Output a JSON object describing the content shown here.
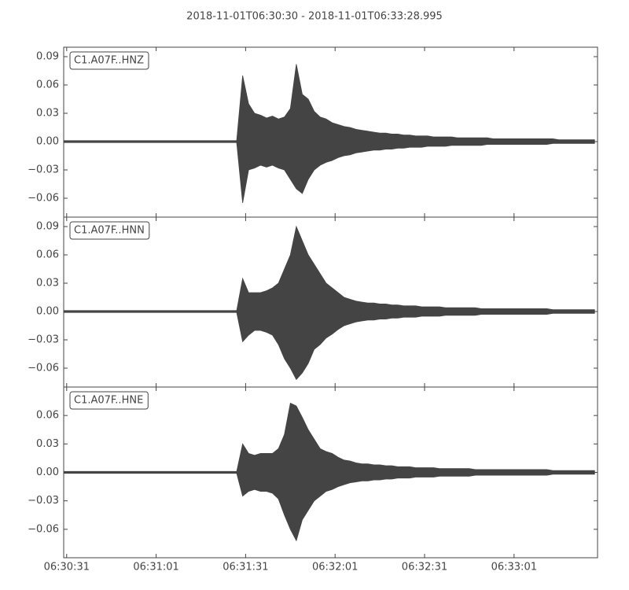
{
  "title": "2018-11-01T06:30:30  -  2018-11-01T06:33:28.995",
  "chart_data": [
    {
      "type": "waveform",
      "label": "C1.A07F..HNZ",
      "color": "#444444",
      "x": [
        0,
        2,
        4,
        6,
        8,
        10,
        12,
        14,
        16,
        18,
        20,
        22,
        24,
        26,
        28,
        30,
        32,
        34,
        36,
        38,
        40,
        42,
        44,
        46,
        48,
        50,
        52,
        54,
        56,
        58,
        60,
        62,
        64,
        66,
        68,
        70,
        72,
        74,
        76,
        78,
        80,
        82,
        84,
        86,
        88,
        90,
        92,
        94,
        96,
        98,
        100,
        102,
        104,
        106,
        108,
        110,
        112,
        114,
        116,
        118,
        120,
        122,
        124,
        126,
        128,
        130,
        132,
        134,
        136,
        138,
        140,
        142,
        144,
        146,
        148,
        150,
        152,
        154,
        156,
        158,
        160,
        162,
        164,
        166,
        168,
        170,
        172,
        174,
        176,
        178
      ],
      "max": [
        0.001,
        0.001,
        0.001,
        0.001,
        0.001,
        0.001,
        0.001,
        0.001,
        0.001,
        0.001,
        0.001,
        0.001,
        0.001,
        0.001,
        0.001,
        0.001,
        0.001,
        0.001,
        0.001,
        0.001,
        0.001,
        0.001,
        0.001,
        0.001,
        0.001,
        0.001,
        0.001,
        0.001,
        0.001,
        0.001,
        0.07,
        0.04,
        0.03,
        0.028,
        0.025,
        0.027,
        0.024,
        0.026,
        0.035,
        0.082,
        0.05,
        0.045,
        0.032,
        0.026,
        0.024,
        0.02,
        0.018,
        0.016,
        0.015,
        0.013,
        0.012,
        0.011,
        0.01,
        0.009,
        0.009,
        0.008,
        0.008,
        0.007,
        0.007,
        0.006,
        0.006,
        0.006,
        0.005,
        0.005,
        0.005,
        0.005,
        0.004,
        0.004,
        0.004,
        0.004,
        0.004,
        0.004,
        0.003,
        0.003,
        0.003,
        0.003,
        0.003,
        0.003,
        0.003,
        0.003,
        0.003,
        0.003,
        0.003,
        0.002,
        0.002,
        0.002,
        0.002,
        0.002,
        0.002,
        0.002
      ],
      "min": [
        -0.001,
        -0.001,
        -0.001,
        -0.001,
        -0.001,
        -0.001,
        -0.001,
        -0.001,
        -0.001,
        -0.001,
        -0.001,
        -0.001,
        -0.001,
        -0.001,
        -0.001,
        -0.001,
        -0.001,
        -0.001,
        -0.001,
        -0.001,
        -0.001,
        -0.001,
        -0.001,
        -0.001,
        -0.001,
        -0.001,
        -0.001,
        -0.001,
        -0.001,
        -0.001,
        -0.065,
        -0.03,
        -0.028,
        -0.025,
        -0.027,
        -0.025,
        -0.028,
        -0.03,
        -0.04,
        -0.05,
        -0.055,
        -0.04,
        -0.03,
        -0.025,
        -0.022,
        -0.02,
        -0.017,
        -0.015,
        -0.014,
        -0.012,
        -0.011,
        -0.01,
        -0.009,
        -0.009,
        -0.008,
        -0.008,
        -0.007,
        -0.007,
        -0.006,
        -0.006,
        -0.006,
        -0.005,
        -0.005,
        -0.005,
        -0.005,
        -0.004,
        -0.004,
        -0.004,
        -0.004,
        -0.004,
        -0.004,
        -0.003,
        -0.003,
        -0.003,
        -0.003,
        -0.003,
        -0.003,
        -0.003,
        -0.003,
        -0.003,
        -0.003,
        -0.003,
        -0.002,
        -0.002,
        -0.002,
        -0.002,
        -0.002,
        -0.002,
        -0.002,
        -0.002
      ],
      "xlim": [
        0,
        178.995
      ],
      "ylim": [
        -0.08,
        0.1
      ],
      "yticks": [
        {
          "value": -0.06,
          "label": "−0.06"
        },
        {
          "value": -0.03,
          "label": "−0.03"
        },
        {
          "value": 0,
          "label": "0.00"
        },
        {
          "value": 0.03,
          "label": "0.03"
        },
        {
          "value": 0.06,
          "label": "0.06"
        },
        {
          "value": 0.09,
          "label": "0.09"
        }
      ]
    },
    {
      "type": "waveform",
      "label": "C1.A07F..HNN",
      "color": "#444444",
      "x": [
        0,
        2,
        4,
        6,
        8,
        10,
        12,
        14,
        16,
        18,
        20,
        22,
        24,
        26,
        28,
        30,
        32,
        34,
        36,
        38,
        40,
        42,
        44,
        46,
        48,
        50,
        52,
        54,
        56,
        58,
        60,
        62,
        64,
        66,
        68,
        70,
        72,
        74,
        76,
        78,
        80,
        82,
        84,
        86,
        88,
        90,
        92,
        94,
        96,
        98,
        100,
        102,
        104,
        106,
        108,
        110,
        112,
        114,
        116,
        118,
        120,
        122,
        124,
        126,
        128,
        130,
        132,
        134,
        136,
        138,
        140,
        142,
        144,
        146,
        148,
        150,
        152,
        154,
        156,
        158,
        160,
        162,
        164,
        166,
        168,
        170,
        172,
        174,
        176,
        178
      ],
      "max": [
        0.001,
        0.001,
        0.001,
        0.001,
        0.001,
        0.001,
        0.001,
        0.001,
        0.001,
        0.001,
        0.001,
        0.001,
        0.001,
        0.001,
        0.001,
        0.001,
        0.001,
        0.001,
        0.001,
        0.001,
        0.001,
        0.001,
        0.001,
        0.001,
        0.001,
        0.001,
        0.001,
        0.001,
        0.001,
        0.001,
        0.035,
        0.02,
        0.02,
        0.02,
        0.022,
        0.025,
        0.03,
        0.045,
        0.06,
        0.09,
        0.075,
        0.06,
        0.05,
        0.04,
        0.03,
        0.025,
        0.02,
        0.015,
        0.013,
        0.011,
        0.01,
        0.009,
        0.009,
        0.008,
        0.008,
        0.007,
        0.007,
        0.006,
        0.006,
        0.006,
        0.005,
        0.005,
        0.005,
        0.005,
        0.004,
        0.004,
        0.004,
        0.004,
        0.004,
        0.004,
        0.003,
        0.003,
        0.003,
        0.003,
        0.003,
        0.003,
        0.003,
        0.003,
        0.003,
        0.003,
        0.003,
        0.003,
        0.002,
        0.002,
        0.002,
        0.002,
        0.002,
        0.002,
        0.002,
        0.002
      ],
      "min": [
        -0.001,
        -0.001,
        -0.001,
        -0.001,
        -0.001,
        -0.001,
        -0.001,
        -0.001,
        -0.001,
        -0.001,
        -0.001,
        -0.001,
        -0.001,
        -0.001,
        -0.001,
        -0.001,
        -0.001,
        -0.001,
        -0.001,
        -0.001,
        -0.001,
        -0.001,
        -0.001,
        -0.001,
        -0.001,
        -0.001,
        -0.001,
        -0.001,
        -0.001,
        -0.001,
        -0.032,
        -0.025,
        -0.02,
        -0.02,
        -0.022,
        -0.025,
        -0.035,
        -0.05,
        -0.06,
        -0.072,
        -0.065,
        -0.055,
        -0.04,
        -0.035,
        -0.028,
        -0.024,
        -0.019,
        -0.015,
        -0.013,
        -0.011,
        -0.01,
        -0.009,
        -0.009,
        -0.008,
        -0.008,
        -0.007,
        -0.007,
        -0.006,
        -0.006,
        -0.006,
        -0.005,
        -0.005,
        -0.005,
        -0.005,
        -0.004,
        -0.004,
        -0.004,
        -0.004,
        -0.004,
        -0.004,
        -0.003,
        -0.003,
        -0.003,
        -0.003,
        -0.003,
        -0.003,
        -0.003,
        -0.003,
        -0.003,
        -0.003,
        -0.003,
        -0.003,
        -0.002,
        -0.002,
        -0.002,
        -0.002,
        -0.002,
        -0.002,
        -0.002,
        -0.002
      ],
      "xlim": [
        0,
        178.995
      ],
      "ylim": [
        -0.08,
        0.1
      ],
      "yticks": [
        {
          "value": -0.06,
          "label": "−0.06"
        },
        {
          "value": -0.03,
          "label": "−0.03"
        },
        {
          "value": 0,
          "label": "0.00"
        },
        {
          "value": 0.03,
          "label": "0.03"
        },
        {
          "value": 0.06,
          "label": "0.06"
        },
        {
          "value": 0.09,
          "label": "0.09"
        }
      ]
    },
    {
      "type": "waveform",
      "label": "C1.A07F..HNE",
      "color": "#444444",
      "x": [
        0,
        2,
        4,
        6,
        8,
        10,
        12,
        14,
        16,
        18,
        20,
        22,
        24,
        26,
        28,
        30,
        32,
        34,
        36,
        38,
        40,
        42,
        44,
        46,
        48,
        50,
        52,
        54,
        56,
        58,
        60,
        62,
        64,
        66,
        68,
        70,
        72,
        74,
        76,
        78,
        80,
        82,
        84,
        86,
        88,
        90,
        92,
        94,
        96,
        98,
        100,
        102,
        104,
        106,
        108,
        110,
        112,
        114,
        116,
        118,
        120,
        122,
        124,
        126,
        128,
        130,
        132,
        134,
        136,
        138,
        140,
        142,
        144,
        146,
        148,
        150,
        152,
        154,
        156,
        158,
        160,
        162,
        164,
        166,
        168,
        170,
        172,
        174,
        176,
        178
      ],
      "max": [
        0.001,
        0.001,
        0.001,
        0.001,
        0.001,
        0.001,
        0.001,
        0.001,
        0.001,
        0.001,
        0.001,
        0.001,
        0.001,
        0.001,
        0.001,
        0.001,
        0.001,
        0.001,
        0.001,
        0.001,
        0.001,
        0.001,
        0.001,
        0.001,
        0.001,
        0.001,
        0.001,
        0.001,
        0.001,
        0.001,
        0.03,
        0.02,
        0.018,
        0.02,
        0.02,
        0.02,
        0.025,
        0.04,
        0.073,
        0.07,
        0.058,
        0.045,
        0.035,
        0.025,
        0.022,
        0.02,
        0.016,
        0.013,
        0.012,
        0.01,
        0.009,
        0.009,
        0.008,
        0.008,
        0.007,
        0.007,
        0.006,
        0.006,
        0.006,
        0.005,
        0.005,
        0.005,
        0.005,
        0.004,
        0.004,
        0.004,
        0.004,
        0.004,
        0.004,
        0.003,
        0.003,
        0.003,
        0.003,
        0.003,
        0.003,
        0.003,
        0.003,
        0.003,
        0.003,
        0.003,
        0.003,
        0.003,
        0.002,
        0.002,
        0.002,
        0.002,
        0.002,
        0.002,
        0.002,
        0.002
      ],
      "min": [
        -0.001,
        -0.001,
        -0.001,
        -0.001,
        -0.001,
        -0.001,
        -0.001,
        -0.001,
        -0.001,
        -0.001,
        -0.001,
        -0.001,
        -0.001,
        -0.001,
        -0.001,
        -0.001,
        -0.001,
        -0.001,
        -0.001,
        -0.001,
        -0.001,
        -0.001,
        -0.001,
        -0.001,
        -0.001,
        -0.001,
        -0.001,
        -0.001,
        -0.001,
        -0.001,
        -0.025,
        -0.02,
        -0.018,
        -0.02,
        -0.02,
        -0.022,
        -0.028,
        -0.045,
        -0.06,
        -0.072,
        -0.05,
        -0.04,
        -0.03,
        -0.025,
        -0.02,
        -0.018,
        -0.015,
        -0.013,
        -0.011,
        -0.01,
        -0.009,
        -0.009,
        -0.008,
        -0.008,
        -0.007,
        -0.007,
        -0.006,
        -0.006,
        -0.006,
        -0.005,
        -0.005,
        -0.005,
        -0.005,
        -0.004,
        -0.004,
        -0.004,
        -0.004,
        -0.004,
        -0.004,
        -0.003,
        -0.003,
        -0.003,
        -0.003,
        -0.003,
        -0.003,
        -0.003,
        -0.003,
        -0.003,
        -0.003,
        -0.003,
        -0.003,
        -0.003,
        -0.002,
        -0.002,
        -0.002,
        -0.002,
        -0.002,
        -0.002,
        -0.002,
        -0.002
      ],
      "xlim": [
        0,
        178.995
      ],
      "ylim": [
        -0.09,
        0.09
      ],
      "yticks": [
        {
          "value": -0.06,
          "label": "−0.06"
        },
        {
          "value": -0.03,
          "label": "−0.03"
        },
        {
          "value": 0,
          "label": "0.00"
        },
        {
          "value": 0.03,
          "label": "0.03"
        },
        {
          "value": 0.06,
          "label": "0.06"
        }
      ],
      "xticks": [
        {
          "value": 1,
          "label": "06:30:31"
        },
        {
          "value": 31,
          "label": "06:31:01"
        },
        {
          "value": 61,
          "label": "06:31:31"
        },
        {
          "value": 91,
          "label": "06:32:01"
        },
        {
          "value": 121,
          "label": "06:32:31"
        },
        {
          "value": 151,
          "label": "06:33:01"
        }
      ]
    }
  ]
}
